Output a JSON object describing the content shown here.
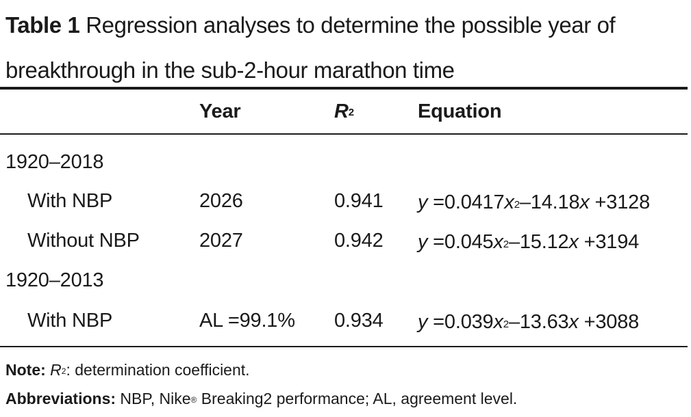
{
  "caption": {
    "label": "Table 1",
    "text": "Regression analyses to determine the possible year of breakthrough in the sub-2-hour marathon time"
  },
  "table": {
    "headers": {
      "year": "Year",
      "r2_symbol": "R",
      "r2_superscript": "2",
      "equation": "Equation"
    },
    "groups": [
      {
        "label": "1920–2018",
        "rows": [
          {
            "label": "With NBP",
            "year": "2026",
            "r2": "0.941",
            "eq": {
              "y": "y",
              "a": " =0.0417",
              "x1": "x",
              "pow": "2",
              "b": "–14.18",
              "x2": "x",
              "c": " +3128"
            }
          },
          {
            "label": "Without NBP",
            "year": "2027",
            "r2": "0.942",
            "eq": {
              "y": "y",
              "a": " =0.045",
              "x1": "x",
              "pow": "2",
              "b": "–15.12",
              "x2": "x",
              "c": " +3194"
            }
          }
        ]
      },
      {
        "label": "1920–2013",
        "rows": [
          {
            "label": "With NBP",
            "year": "AL =99.1%",
            "r2": "0.934",
            "eq": {
              "y": "y",
              "a": " =0.039",
              "x1": "x",
              "pow": "2",
              "b": "–13.63",
              "x2": "x",
              "c": " +3088"
            }
          }
        ]
      }
    ]
  },
  "notes": {
    "note_label": "Note:",
    "note_symbol": "R",
    "note_superscript": "2",
    "note_text": ": determination coefficient.",
    "abbr_label": "Abbreviations:",
    "abbr_text_1": " NBP, Nike",
    "abbr_registered": "®",
    "abbr_text_2": " Breaking2 performance; AL, agreement level."
  }
}
